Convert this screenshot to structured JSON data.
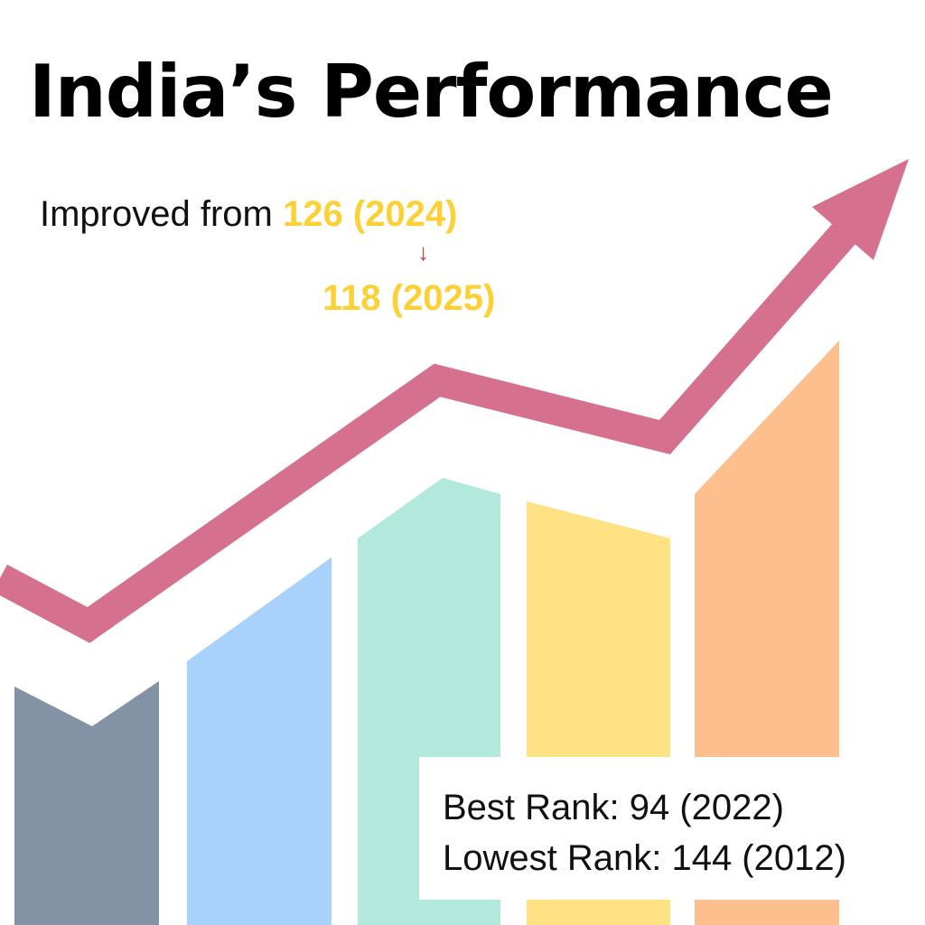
{
  "title": "India’s Performance",
  "improvement": {
    "prefix": "Improved from ",
    "from_rank": "126 (2024)",
    "arrow": "↓",
    "to_rank": "118 (2025)"
  },
  "stats": {
    "best_rank": "Best Rank: 94 (2022)",
    "lowest_rank": "Lowest Rank: 144 (2012)"
  },
  "colors": {
    "highlight": "#fdd135",
    "arrow_down": "#d9363e",
    "trend_arrow": "#d6708f",
    "bars": [
      "#8492a6",
      "#a8d1fb",
      "#b3e8dd",
      "#fee283",
      "#fdbf8d"
    ]
  },
  "icons": {
    "trend": "upward-trend-arrow-icon",
    "down": "down-arrow-icon"
  }
}
